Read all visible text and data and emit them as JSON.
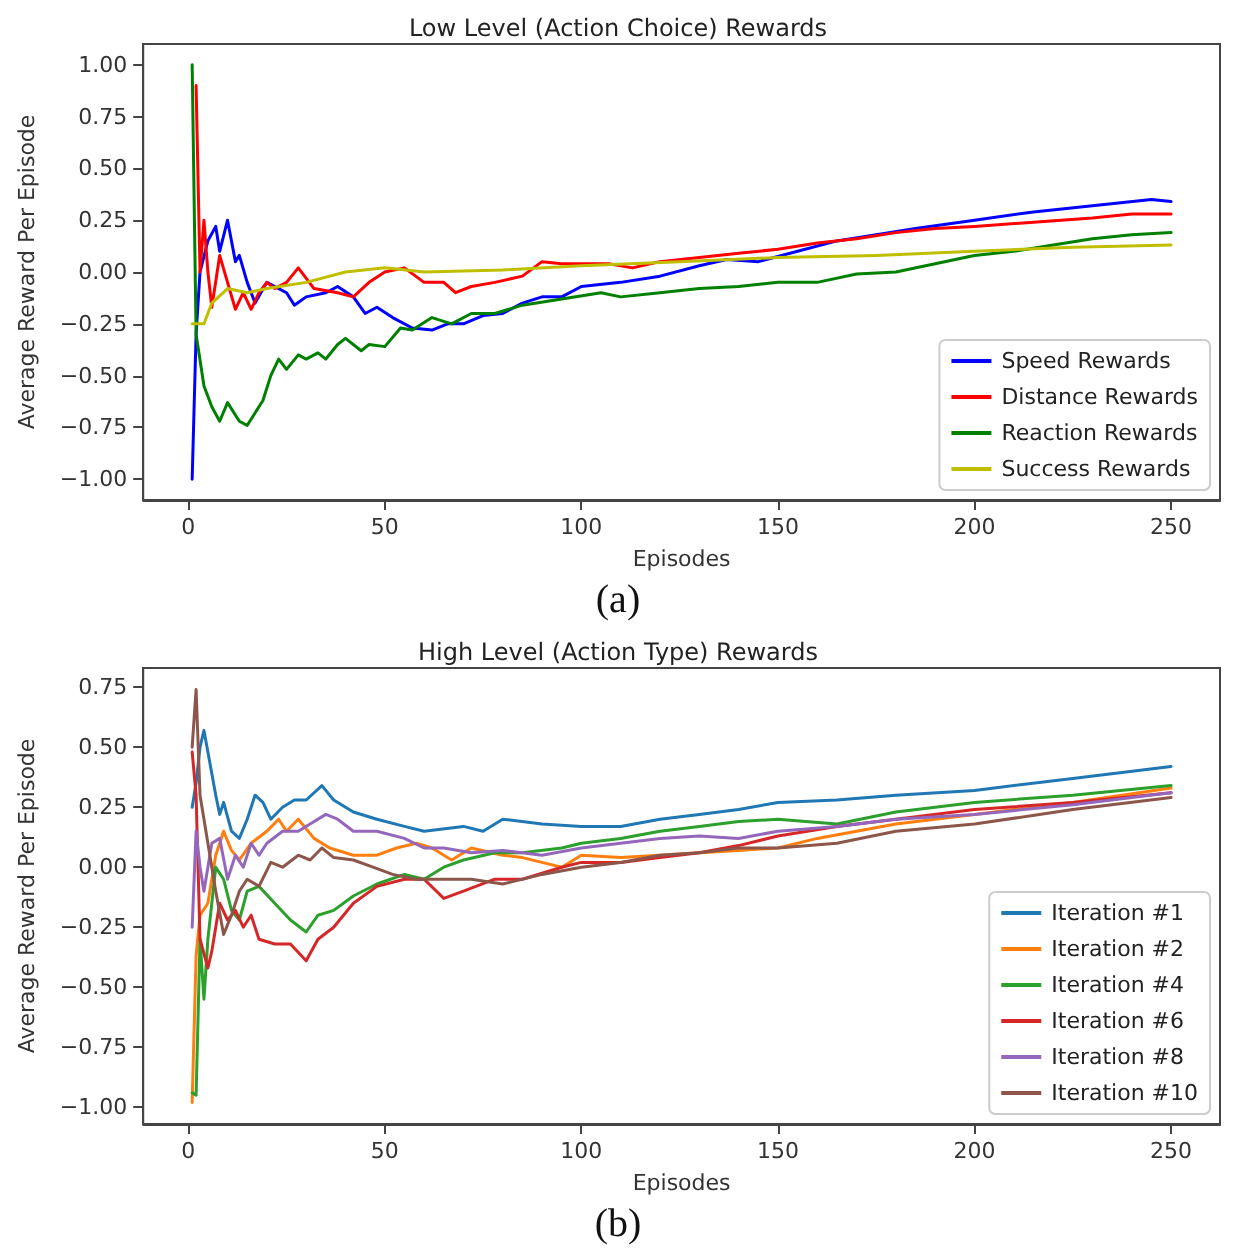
{
  "chart_data": [
    {
      "type": "line",
      "title": "Low Level (Action Choice) Rewards",
      "xlabel": "Episodes",
      "ylabel": "Average Reward Per Episode",
      "annotations": [
        "(a)"
      ],
      "legend": "bottom right",
      "grid": false,
      "xlim": [
        -11.45,
        262.45
      ],
      "xticks": [
        0,
        50,
        100,
        150,
        200,
        250
      ],
      "ylim": [
        -1.1,
        1.1
      ],
      "yticks": [
        {
          "value": -1,
          "label": "−1.00"
        },
        {
          "value": -0.75,
          "label": "−0.75"
        },
        {
          "value": -0.5,
          "label": "−0.50"
        },
        {
          "value": -0.25,
          "label": "−0.25"
        },
        {
          "value": 0,
          "label": "0.00"
        },
        {
          "value": 0.25,
          "label": "0.25"
        },
        {
          "value": 0.5,
          "label": "0.50"
        },
        {
          "value": 0.75,
          "label": "0.75"
        },
        {
          "value": 1,
          "label": "1.00"
        }
      ],
      "series": [
        {
          "name": "Speed Rewards",
          "color": "#0000ff",
          "x": [
            1,
            2,
            3,
            5,
            7,
            8,
            10,
            12,
            13,
            15,
            17,
            20,
            25,
            27,
            30,
            35,
            38,
            42,
            45,
            48,
            52,
            57,
            62,
            66,
            70,
            75,
            80,
            85,
            90,
            95,
            100,
            110,
            120,
            130,
            137,
            145,
            155,
            165,
            175,
            185,
            200,
            215,
            230,
            245,
            250
          ],
          "values": [
            -1.0,
            -0.3,
            0.0,
            0.15,
            0.22,
            0.1,
            0.25,
            0.05,
            0.08,
            -0.05,
            -0.15,
            -0.05,
            -0.1,
            -0.16,
            -0.12,
            -0.1,
            -0.07,
            -0.12,
            -0.2,
            -0.17,
            -0.22,
            -0.27,
            -0.28,
            -0.25,
            -0.25,
            -0.21,
            -0.2,
            -0.15,
            -0.12,
            -0.12,
            -0.07,
            -0.05,
            -0.02,
            0.03,
            0.06,
            0.05,
            0.1,
            0.15,
            0.18,
            0.21,
            0.25,
            0.29,
            0.32,
            0.35,
            0.34
          ]
        },
        {
          "name": "Distance Rewards",
          "color": "#ff0000",
          "x": [
            2,
            3,
            4,
            5,
            6,
            8,
            10,
            12,
            14,
            16,
            18,
            20,
            22,
            25,
            28,
            32,
            38,
            42,
            46,
            50,
            55,
            60,
            65,
            68,
            72,
            78,
            85,
            90,
            95,
            100,
            107,
            113,
            120,
            130,
            140,
            150,
            160,
            170,
            180,
            190,
            200,
            215,
            230,
            240,
            250
          ],
          "values": [
            0.9,
            0.0,
            0.25,
            0.0,
            -0.17,
            0.08,
            -0.05,
            -0.18,
            -0.1,
            -0.18,
            -0.1,
            -0.05,
            -0.08,
            -0.05,
            0.02,
            -0.08,
            -0.1,
            -0.12,
            -0.05,
            0.0,
            0.02,
            -0.05,
            -0.05,
            -0.1,
            -0.07,
            -0.05,
            -0.02,
            0.05,
            0.04,
            0.04,
            0.04,
            0.02,
            0.05,
            0.07,
            0.09,
            0.11,
            0.14,
            0.16,
            0.19,
            0.21,
            0.22,
            0.24,
            0.26,
            0.28,
            0.28
          ]
        },
        {
          "name": "Reaction Rewards",
          "color": "#008000",
          "x": [
            1,
            2,
            4,
            6,
            8,
            10,
            13,
            15,
            17,
            19,
            21,
            23,
            25,
            28,
            30,
            33,
            35,
            38,
            40,
            44,
            46,
            50,
            54,
            57,
            62,
            67,
            72,
            78,
            85,
            95,
            105,
            110,
            120,
            130,
            140,
            150,
            160,
            170,
            180,
            190,
            200,
            210,
            220,
            230,
            240,
            250
          ],
          "values": [
            1.0,
            -0.3,
            -0.55,
            -0.65,
            -0.72,
            -0.63,
            -0.72,
            -0.74,
            -0.68,
            -0.62,
            -0.5,
            -0.42,
            -0.47,
            -0.4,
            -0.42,
            -0.39,
            -0.42,
            -0.35,
            -0.32,
            -0.38,
            -0.35,
            -0.36,
            -0.27,
            -0.28,
            -0.22,
            -0.25,
            -0.2,
            -0.2,
            -0.16,
            -0.13,
            -0.1,
            -0.12,
            -0.1,
            -0.08,
            -0.07,
            -0.05,
            -0.05,
            -0.01,
            0.0,
            0.04,
            0.08,
            0.1,
            0.13,
            0.16,
            0.18,
            0.19
          ]
        },
        {
          "name": "Success Rewards",
          "color": "#bfbf00",
          "x": [
            1,
            4,
            6,
            10,
            15,
            20,
            30,
            40,
            50,
            60,
            80,
            100,
            125,
            150,
            175,
            200,
            225,
            250
          ],
          "values": [
            -0.25,
            -0.25,
            -0.15,
            -0.08,
            -0.1,
            -0.08,
            -0.05,
            0.0,
            0.02,
            0.0,
            0.01,
            0.03,
            0.05,
            0.07,
            0.08,
            0.1,
            0.12,
            0.13
          ]
        }
      ]
    },
    {
      "type": "line",
      "title": "High Level (Action Type) Rewards",
      "xlabel": "Episodes",
      "ylabel": "Average Reward Per Episode",
      "annotations": [
        "(b)"
      ],
      "legend": "bottom right",
      "grid": false,
      "xlim": [
        -11.45,
        262.45
      ],
      "xticks": [
        0,
        50,
        100,
        150,
        200,
        250
      ],
      "ylim": [
        -1.07,
        0.83
      ],
      "yticks": [
        {
          "value": -1,
          "label": "−1.00"
        },
        {
          "value": -0.75,
          "label": "−0.75"
        },
        {
          "value": -0.5,
          "label": "−0.50"
        },
        {
          "value": -0.25,
          "label": "−0.25"
        },
        {
          "value": 0,
          "label": "0.00"
        },
        {
          "value": 0.25,
          "label": "0.25"
        },
        {
          "value": 0.5,
          "label": "0.50"
        },
        {
          "value": 0.75,
          "label": "0.75"
        }
      ],
      "series": [
        {
          "name": "Iteration #1",
          "color": "#1f77b4",
          "x": [
            1,
            2,
            3,
            4,
            5,
            7,
            8,
            9,
            11,
            13,
            15,
            17,
            19,
            21,
            24,
            27,
            30,
            34,
            37,
            42,
            48,
            55,
            60,
            70,
            75,
            80,
            90,
            100,
            110,
            120,
            130,
            140,
            150,
            165,
            180,
            200,
            225,
            250
          ],
          "values": [
            0.25,
            0.35,
            0.5,
            0.57,
            0.48,
            0.3,
            0.22,
            0.27,
            0.15,
            0.12,
            0.2,
            0.3,
            0.27,
            0.2,
            0.25,
            0.28,
            0.28,
            0.34,
            0.28,
            0.23,
            0.2,
            0.17,
            0.15,
            0.17,
            0.15,
            0.2,
            0.18,
            0.17,
            0.17,
            0.2,
            0.22,
            0.24,
            0.27,
            0.28,
            0.3,
            0.32,
            0.37,
            0.42
          ]
        },
        {
          "name": "Iteration #2",
          "color": "#ff7f0e",
          "x": [
            1,
            2,
            3,
            5,
            7,
            9,
            11,
            13,
            16,
            20,
            23,
            25,
            28,
            32,
            36,
            42,
            48,
            53,
            58,
            62,
            67,
            72,
            80,
            85,
            90,
            95,
            100,
            110,
            120,
            130,
            140,
            150,
            160,
            170,
            180,
            200,
            225,
            250
          ],
          "values": [
            -0.98,
            -0.37,
            -0.2,
            -0.15,
            0.05,
            0.15,
            0.07,
            0.03,
            0.1,
            0.15,
            0.2,
            0.15,
            0.2,
            0.12,
            0.08,
            0.05,
            0.05,
            0.08,
            0.1,
            0.08,
            0.03,
            0.08,
            0.05,
            0.04,
            0.02,
            0.0,
            0.05,
            0.04,
            0.05,
            0.06,
            0.07,
            0.08,
            0.12,
            0.15,
            0.18,
            0.22,
            0.27,
            0.33
          ]
        },
        {
          "name": "Iteration #4",
          "color": "#2ca02c",
          "x": [
            1,
            2,
            3,
            4,
            5,
            7,
            9,
            11,
            13,
            15,
            18,
            22,
            26,
            30,
            33,
            37,
            42,
            48,
            55,
            60,
            65,
            70,
            78,
            85,
            95,
            100,
            110,
            120,
            130,
            140,
            150,
            165,
            180,
            200,
            225,
            250
          ],
          "values": [
            -0.94,
            -0.95,
            -0.3,
            -0.55,
            -0.3,
            0.0,
            -0.05,
            -0.18,
            -0.22,
            -0.1,
            -0.08,
            -0.15,
            -0.22,
            -0.27,
            -0.2,
            -0.18,
            -0.12,
            -0.07,
            -0.03,
            -0.05,
            0.0,
            0.03,
            0.06,
            0.06,
            0.08,
            0.1,
            0.12,
            0.15,
            0.17,
            0.19,
            0.2,
            0.18,
            0.23,
            0.27,
            0.3,
            0.34
          ]
        },
        {
          "name": "Iteration #6",
          "color": "#d62728",
          "x": [
            1,
            2,
            3,
            5,
            6,
            8,
            10,
            12,
            14,
            16,
            18,
            22,
            26,
            30,
            33,
            37,
            42,
            48,
            55,
            60,
            65,
            70,
            78,
            85,
            95,
            100,
            110,
            120,
            130,
            140,
            150,
            165,
            180,
            200,
            225,
            250
          ],
          "values": [
            0.48,
            0.3,
            -0.3,
            -0.42,
            -0.35,
            -0.15,
            -0.22,
            -0.18,
            -0.25,
            -0.2,
            -0.3,
            -0.32,
            -0.32,
            -0.39,
            -0.3,
            -0.25,
            -0.15,
            -0.08,
            -0.05,
            -0.05,
            -0.13,
            -0.1,
            -0.05,
            -0.05,
            0.0,
            0.02,
            0.02,
            0.04,
            0.06,
            0.09,
            0.13,
            0.17,
            0.2,
            0.24,
            0.27,
            0.31
          ]
        },
        {
          "name": "Iteration #8",
          "color": "#9467bd",
          "x": [
            1,
            2,
            3,
            4,
            6,
            8,
            10,
            12,
            14,
            16,
            18,
            20,
            24,
            28,
            31,
            35,
            38,
            42,
            48,
            55,
            60,
            65,
            72,
            80,
            90,
            100,
            110,
            120,
            130,
            140,
            150,
            165,
            180,
            200,
            225,
            250
          ],
          "values": [
            -0.25,
            0.15,
            0.0,
            -0.1,
            0.1,
            0.12,
            -0.05,
            0.05,
            0.0,
            0.1,
            0.05,
            0.1,
            0.15,
            0.15,
            0.18,
            0.22,
            0.2,
            0.15,
            0.15,
            0.12,
            0.08,
            0.08,
            0.06,
            0.07,
            0.05,
            0.08,
            0.1,
            0.12,
            0.13,
            0.12,
            0.15,
            0.17,
            0.2,
            0.22,
            0.26,
            0.31
          ]
        },
        {
          "name": "Iteration #10",
          "color": "#8c564b",
          "x": [
            1,
            2,
            3,
            5,
            7,
            9,
            11,
            13,
            15,
            18,
            21,
            24,
            28,
            31,
            34,
            37,
            42,
            47,
            52,
            58,
            65,
            72,
            80,
            90,
            100,
            110,
            120,
            130,
            140,
            150,
            165,
            180,
            200,
            225,
            250
          ],
          "values": [
            0.5,
            0.74,
            0.3,
            0.1,
            -0.1,
            -0.28,
            -0.2,
            -0.1,
            -0.05,
            -0.08,
            0.02,
            0.0,
            0.05,
            0.03,
            0.08,
            0.04,
            0.03,
            0.0,
            -0.03,
            -0.05,
            -0.05,
            -0.05,
            -0.07,
            -0.03,
            0.0,
            0.02,
            0.05,
            0.06,
            0.08,
            0.08,
            0.1,
            0.15,
            0.18,
            0.24,
            0.29
          ]
        }
      ]
    }
  ]
}
